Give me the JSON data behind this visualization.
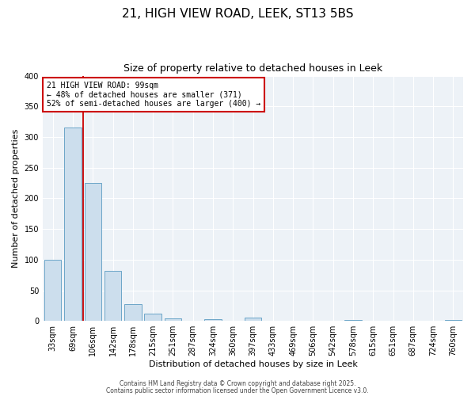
{
  "title": "21, HIGH VIEW ROAD, LEEK, ST13 5BS",
  "subtitle": "Size of property relative to detached houses in Leek",
  "xlabel": "Distribution of detached houses by size in Leek",
  "ylabel": "Number of detached properties",
  "categories": [
    "33sqm",
    "69sqm",
    "106sqm",
    "142sqm",
    "178sqm",
    "215sqm",
    "251sqm",
    "287sqm",
    "324sqm",
    "360sqm",
    "397sqm",
    "433sqm",
    "469sqm",
    "506sqm",
    "542sqm",
    "578sqm",
    "615sqm",
    "651sqm",
    "687sqm",
    "724sqm",
    "760sqm"
  ],
  "bar_values": [
    100,
    315,
    225,
    82,
    27,
    12,
    4,
    0,
    3,
    0,
    5,
    0,
    0,
    0,
    0,
    2,
    0,
    0,
    0,
    0,
    1
  ],
  "bar_color": "#ccdeed",
  "bar_edge_color": "#5a9bc2",
  "vline_color": "#cc0000",
  "vline_pos": 1.5,
  "ylim": [
    0,
    400
  ],
  "yticks": [
    0,
    50,
    100,
    150,
    200,
    250,
    300,
    350,
    400
  ],
  "annotation_title": "21 HIGH VIEW ROAD: 99sqm",
  "annotation_line1": "← 48% of detached houses are smaller (371)",
  "annotation_line2": "52% of semi-detached houses are larger (400) →",
  "annotation_box_color": "#cc0000",
  "footer_line1": "Contains HM Land Registry data © Crown copyright and database right 2025.",
  "footer_line2": "Contains public sector information licensed under the Open Government Licence v3.0.",
  "background_color": "#edf2f7",
  "grid_color": "#ffffff",
  "title_fontsize": 11,
  "subtitle_fontsize": 9,
  "axis_label_fontsize": 8,
  "tick_fontsize": 7,
  "annotation_fontsize": 7,
  "footer_fontsize": 5.5
}
